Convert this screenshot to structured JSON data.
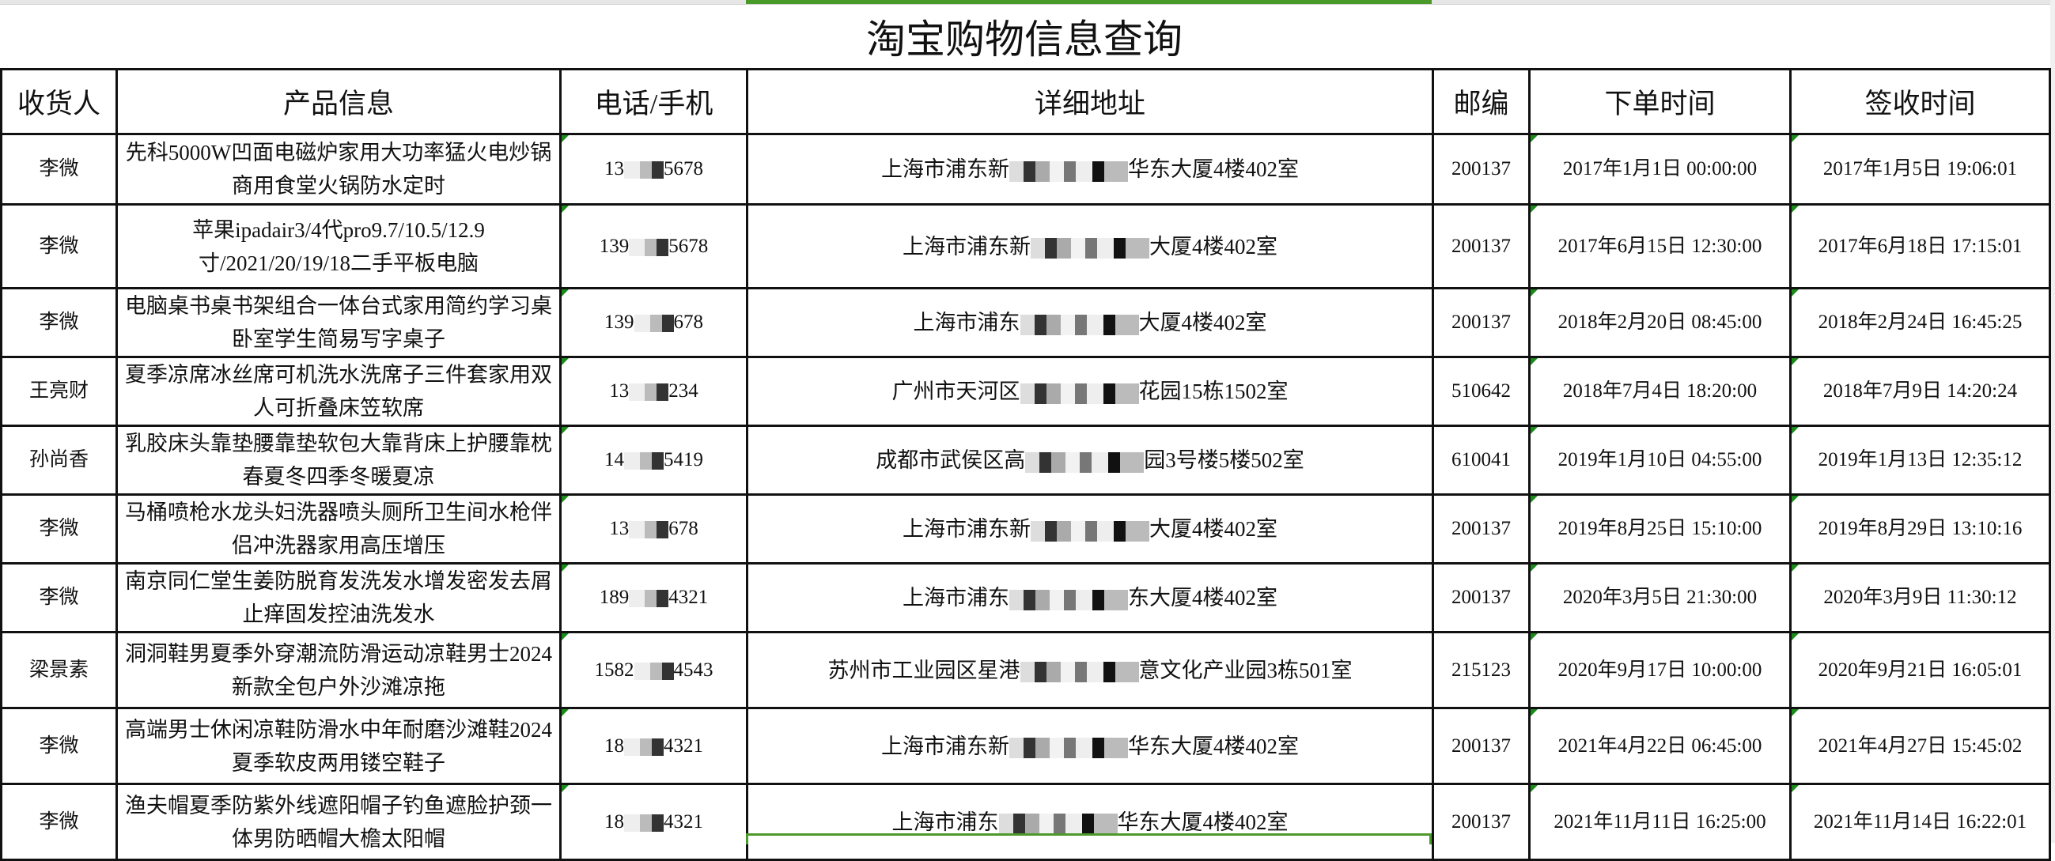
{
  "title": "淘宝购物信息查询",
  "colors": {
    "selection": "#4a9a2a",
    "comment_marker": "#1a8a1a"
  },
  "headers": [
    "收货人",
    "产品信息",
    "电话/手机",
    "详细地址",
    "邮编",
    "下单时间",
    "签收时间"
  ],
  "rows": [
    {
      "name": "李微",
      "product": "先科5000W凹面电磁炉家用大功率猛火电炒锅商用食堂火锅防水定时",
      "phone_start": "13",
      "phone_end": "5678",
      "addr_start": "上海市浦东新",
      "addr_end": "华东大厦4楼402室",
      "zip": "200137",
      "order_time": "2017年1月1日 00:00:00",
      "sign_time": "2017年1月5日 19:06:01"
    },
    {
      "name": "李微",
      "product": "苹果ipadair3/4代pro9.7/10.5/12.9寸/2021/20/19/18二手平板电脑",
      "phone_start": "139",
      "phone_end": "5678",
      "addr_start": "上海市浦东新",
      "addr_end": "大厦4楼402室",
      "zip": "200137",
      "order_time": "2017年6月15日 12:30:00",
      "sign_time": "2017年6月18日 17:15:01"
    },
    {
      "name": "李微",
      "product": "电脑桌书桌书架组合一体台式家用简约学习桌卧室学生简易写字桌子",
      "phone_start": "139",
      "phone_end": "678",
      "addr_start": "上海市浦东",
      "addr_end": "大厦4楼402室",
      "zip": "200137",
      "order_time": "2018年2月20日 08:45:00",
      "sign_time": "2018年2月24日 16:45:25"
    },
    {
      "name": "王亮财",
      "product": "夏季凉席冰丝席可机洗水洗席子三件套家用双人可折叠床笠软席",
      "phone_start": "13",
      "phone_end": "234",
      "addr_start": "广州市天河区",
      "addr_end": "花园15栋1502室",
      "zip": "510642",
      "order_time": "2018年7月4日 18:20:00",
      "sign_time": "2018年7月9日 14:20:24"
    },
    {
      "name": "孙尚香",
      "product": "乳胶床头靠垫腰靠垫软包大靠背床上护腰靠枕春夏冬四季冬暖夏凉",
      "phone_start": "14",
      "phone_end": "5419",
      "addr_start": "成都市武侯区高",
      "addr_end": "园3号楼5楼502室",
      "zip": "610041",
      "order_time": "2019年1月10日 04:55:00",
      "sign_time": "2019年1月13日 12:35:12"
    },
    {
      "name": "李微",
      "product": "马桶喷枪水龙头妇洗器喷头厕所卫生间水枪伴侣冲洗器家用高压增压",
      "phone_start": "13",
      "phone_end": "678",
      "addr_start": "上海市浦东新",
      "addr_end": "大厦4楼402室",
      "zip": "200137",
      "order_time": "2019年8月25日 15:10:00",
      "sign_time": "2019年8月29日 13:10:16"
    },
    {
      "name": "李微",
      "product": "南京同仁堂生姜防脱育发洗发水增发密发去屑止痒固发控油洗发水",
      "phone_start": "189",
      "phone_end": "4321",
      "addr_start": "上海市浦东",
      "addr_end": "东大厦4楼402室",
      "zip": "200137",
      "order_time": "2020年3月5日 21:30:00",
      "sign_time": "2020年3月9日 11:30:12"
    },
    {
      "name": "梁景素",
      "product": "洞洞鞋男夏季外穿潮流防滑运动凉鞋男士2024新款全包户外沙滩凉拖",
      "phone_start": "1582",
      "phone_end": "4543",
      "addr_start": "苏州市工业园区星港",
      "addr_end": "意文化产业园3栋501室",
      "zip": "215123",
      "order_time": "2020年9月17日 10:00:00",
      "sign_time": "2020年9月21日 16:05:01"
    },
    {
      "name": "李微",
      "product": "高端男士休闲凉鞋防滑水中年耐磨沙滩鞋2024夏季软皮两用镂空鞋子",
      "phone_start": "18",
      "phone_end": "4321",
      "addr_start": "上海市浦东新",
      "addr_end": "华东大厦4楼402室",
      "zip": "200137",
      "order_time": "2021年4月22日 06:45:00",
      "sign_time": "2021年4月27日 15:45:02"
    },
    {
      "name": "李微",
      "product": "渔夫帽夏季防紫外线遮阳帽子钓鱼遮脸护颈一体男防晒帽大檐太阳帽",
      "phone_start": "18",
      "phone_end": "4321",
      "addr_start": "上海市浦东",
      "addr_end": "华东大厦4楼402室",
      "zip": "200137",
      "order_time": "2021年11月11日 16:25:00",
      "sign_time": "2021年11月14日 16:22:01"
    }
  ]
}
